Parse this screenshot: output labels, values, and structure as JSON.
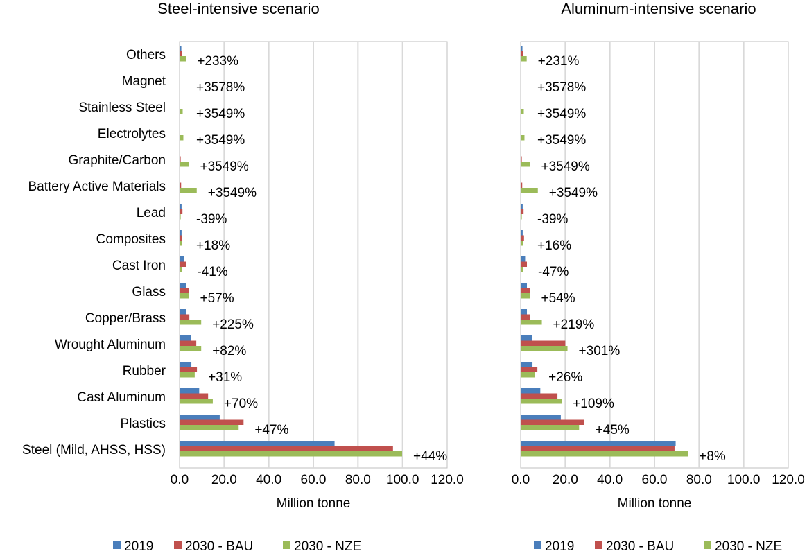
{
  "colors": {
    "series": [
      "#4a7ebb",
      "#c0504d",
      "#9bbb59"
    ],
    "grid": "#d9d9d9",
    "axis": "#bfbfbf"
  },
  "chart_data": [
    {
      "type": "bar",
      "orientation": "horizontal",
      "title": "Steel-intensive scenario",
      "xlabel": "Million tonne",
      "xlim": [
        0,
        120
      ],
      "xticks": [
        "0.0",
        "20.0",
        "40.0",
        "60.0",
        "80.0",
        "100.0",
        "120.0"
      ],
      "grid": true,
      "legend": "bottom",
      "categories": [
        "Others",
        "Magnet",
        "Stainless Steel",
        "Electrolytes",
        "Graphite/Carbon",
        "Battery Active Materials",
        "Lead",
        "Composites",
        "Cast Iron",
        "Glass",
        "Copper/Brass",
        "Wrought Aluminum",
        "Rubber",
        "Cast Aluminum",
        "Plastics",
        "Steel (Mild, AHSS, HSS)"
      ],
      "series": [
        {
          "name": "2019",
          "values": [
            0.8,
            0.05,
            0.05,
            0.05,
            0.1,
            0.2,
            0.9,
            0.9,
            2.0,
            2.8,
            2.8,
            5.2,
            5.3,
            8.8,
            18.0,
            69.5
          ]
        },
        {
          "name": "2030 - BAU",
          "values": [
            1.2,
            0.1,
            0.3,
            0.3,
            0.5,
            0.7,
            1.3,
            1.2,
            2.9,
            4.2,
            4.4,
            7.5,
            7.8,
            12.8,
            28.7,
            95.7
          ]
        },
        {
          "name": "2030 - NZE",
          "values": [
            2.9,
            0.2,
            1.4,
            1.7,
            4.2,
            7.7,
            0.5,
            1.1,
            1.2,
            4.2,
            9.7,
            9.7,
            6.8,
            14.9,
            26.5,
            99.8
          ]
        }
      ],
      "annotations": [
        "+233%",
        "+3578%",
        "+3549%",
        "+3549%",
        "+3549%",
        "+3549%",
        "-39%",
        "+18%",
        "-41%",
        "+57%",
        "+225%",
        "+82%",
        "+31%",
        "+70%",
        "+47%",
        "+44%"
      ]
    },
    {
      "type": "bar",
      "orientation": "horizontal",
      "title": "Aluminum-intensive scenario",
      "xlabel": "Million tonne",
      "xlim": [
        0,
        120
      ],
      "xticks": [
        "0.0",
        "20.0",
        "40.0",
        "60.0",
        "80.0",
        "100.0",
        "120.0"
      ],
      "grid": true,
      "legend": "bottom",
      "categories": [
        "Others",
        "Magnet",
        "Stainless Steel",
        "Electrolytes",
        "Graphite/Carbon",
        "Battery Active Materials",
        "Lead",
        "Composites",
        "Cast Iron",
        "Glass",
        "Copper/Brass",
        "Wrought Aluminum",
        "Rubber",
        "Cast Aluminum",
        "Plastics",
        "Steel (Mild, AHSS, HSS)"
      ],
      "series": [
        {
          "name": "2019",
          "values": [
            0.8,
            0.05,
            0.05,
            0.05,
            0.1,
            0.2,
            0.9,
            0.9,
            2.0,
            2.8,
            2.8,
            5.2,
            5.3,
            8.8,
            18.0,
            69.5
          ]
        },
        {
          "name": "2030 - BAU",
          "values": [
            1.2,
            0.1,
            0.3,
            0.3,
            0.5,
            0.7,
            1.3,
            1.5,
            2.8,
            4.2,
            4.2,
            20.0,
            7.5,
            16.5,
            28.5,
            69.0
          ]
        },
        {
          "name": "2030 - NZE",
          "values": [
            2.7,
            0.2,
            1.4,
            1.7,
            4.2,
            7.7,
            0.5,
            1.2,
            1.0,
            4.2,
            9.5,
            21.0,
            6.5,
            18.4,
            26.2,
            75.0
          ]
        }
      ],
      "annotations": [
        "+231%",
        "+3578%",
        "+3549%",
        "+3549%",
        "+3549%",
        "+3549%",
        "-39%",
        "+16%",
        "-47%",
        "+54%",
        "+219%",
        "+301%",
        "+26%",
        "+109%",
        "+45%",
        "+8%"
      ]
    }
  ]
}
